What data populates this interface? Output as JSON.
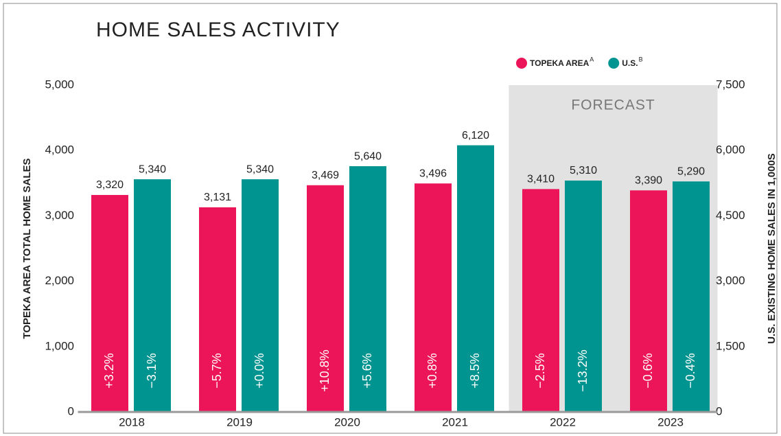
{
  "chart_data": {
    "type": "bar",
    "title": "HOME SALES ACTIVITY",
    "y_label": "TOPEKA AREA TOTAL HOME SALES",
    "y2_label": "U.S. EXISTING HOME SALES IN 1,000S",
    "categories": [
      "2018",
      "2019",
      "2020",
      "2021",
      "2022",
      "2023"
    ],
    "series": [
      {
        "name": "TOPEKA AREA",
        "name_superscript": "A",
        "color": "#ec1559",
        "values": [
          3320,
          3131,
          3469,
          3496,
          3410,
          3390
        ],
        "value_labels": [
          "3,320",
          "3,131",
          "3,469",
          "3,496",
          "3,410",
          "3,390"
        ],
        "change_labels": [
          "+3.2%",
          "−5.7%",
          "+10.8%",
          "+0.8%",
          "−2.5%",
          "−0.6%"
        ]
      },
      {
        "name": "U.S.",
        "name_superscript": "B",
        "color": "#009490",
        "axis": "y2",
        "values": [
          5340,
          5340,
          5640,
          6120,
          5310,
          5290
        ],
        "value_labels": [
          "5,340",
          "5,340",
          "5,640",
          "6,120",
          "5,310",
          "5,290"
        ],
        "change_labels": [
          "−3.1%",
          "+0.0%",
          "+5.6%",
          "+8.5%",
          "−13.2%",
          "−0.4%"
        ]
      }
    ],
    "ylim": [
      0,
      5000
    ],
    "yticks": [
      0,
      {
        "value": 1000,
        "label": "1,000"
      },
      {
        "value": 2000,
        "label": "2,000"
      },
      {
        "value": 3000,
        "label": "3,000"
      },
      {
        "value": 4000,
        "label": "4,000"
      },
      {
        "value": 5000,
        "label": "5,000"
      }
    ],
    "y2lim": [
      0,
      7500
    ],
    "y2ticks": [
      0,
      {
        "value": 1500,
        "label": "1,500"
      },
      {
        "value": 3000,
        "label": "3,000"
      },
      {
        "value": 4500,
        "label": "4,500"
      },
      {
        "value": 6000,
        "label": "6,000"
      },
      {
        "value": 7500,
        "label": "7,500"
      }
    ],
    "forecast": {
      "label": "FORECAST",
      "start": "2022"
    },
    "grid": false
  }
}
